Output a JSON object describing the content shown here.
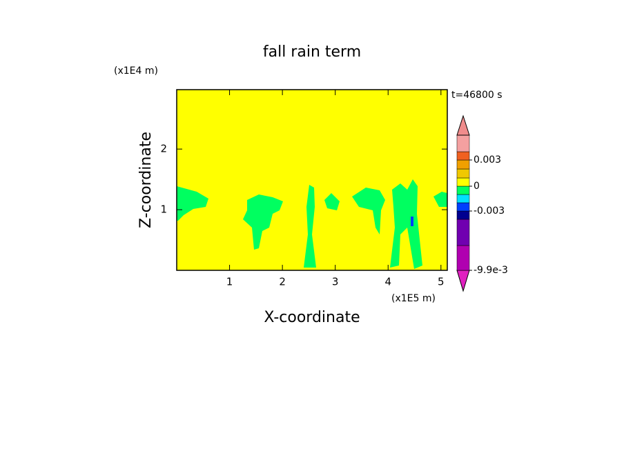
{
  "chart_data": {
    "type": "contour",
    "title": "fall rain term",
    "x_label": "X-coordinate",
    "y_label": "Z-coordinate",
    "x_unit": "(x1E5 m)",
    "y_unit": "(x1E4 m)",
    "time_label": "t=46800 s",
    "xlim": [
      0,
      5.12
    ],
    "xticks": [
      1,
      2,
      3,
      4,
      5
    ],
    "ylim": [
      0,
      2.98
    ],
    "yticks": [
      1,
      2
    ],
    "background_color": "#ffff00",
    "contour_color": "#00ff60",
    "colorbar": {
      "colors": [
        "#e020c0",
        "#b000b0",
        "#7000b0",
        "#000090",
        "#0040ff",
        "#00e0ff",
        "#00ff60",
        "#ffff00",
        "#f0c800",
        "#f0a000",
        "#f06020",
        "#f4a0a0",
        "#f08c8c"
      ],
      "ticks": [
        {
          "value": -0.0099,
          "label": "-9.9e-3"
        },
        -0.003,
        0,
        0.003
      ]
    }
  }
}
